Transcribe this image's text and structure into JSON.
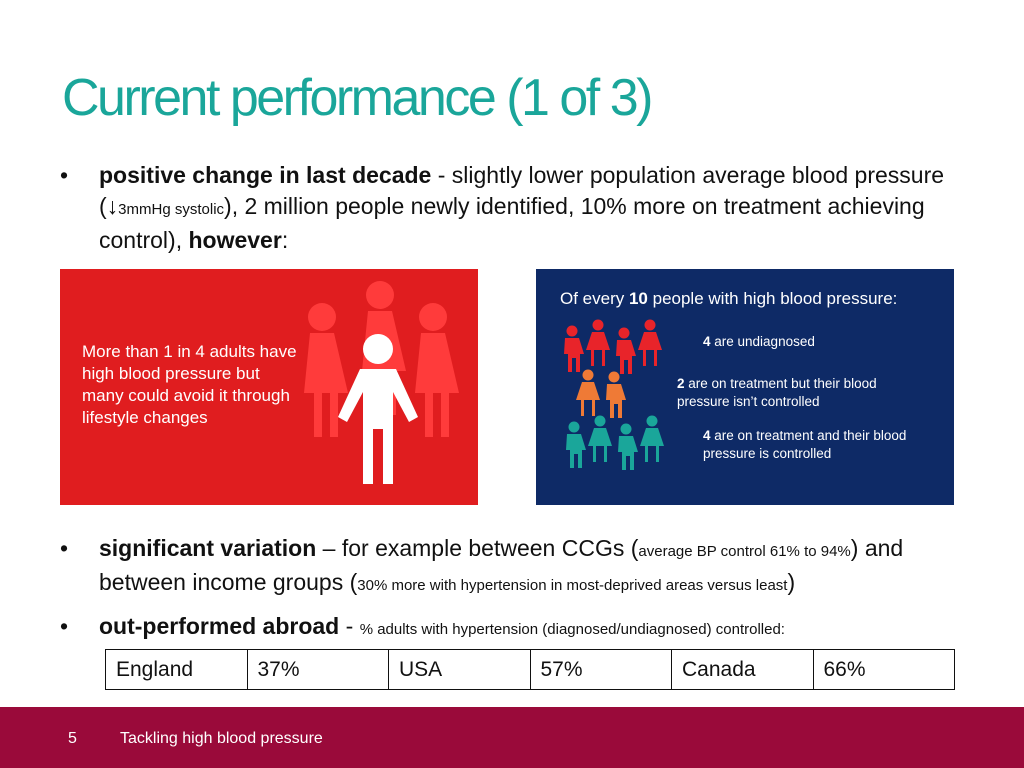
{
  "slide": {
    "title": "Current performance (1 of 3)"
  },
  "bullets": {
    "b1": {
      "bold": "positive change in last decade",
      "text1": " - slightly lower population average blood pressure (",
      "arrow": "↓",
      "small": "3mmHg systolic",
      "text2": "), 2 million people newly identified, 10% more on treatment achieving control), ",
      "bold2": "however",
      "end": ":"
    },
    "b2": {
      "bold": "significant variation",
      "text1": " – for example between CCGs (",
      "small1": "average BP control 61% to 94%",
      "text2": ") and between income groups (",
      "small2": "30% more with hypertension in most-deprived areas versus least",
      "text3": ")"
    },
    "b3": {
      "bold": "out-performed abroad",
      "text1": " - ",
      "small": "% adults with hypertension (diagnosed/undiagnosed) controlled:"
    },
    "bullet_char": "•"
  },
  "red_panel": {
    "text": "More than 1 in 4 adults have high blood pressure but many could avoid it through lifestyle changes",
    "colors": {
      "background": "#e01d1f",
      "figure": "#ff3b3b",
      "highlight": "#ffffff"
    }
  },
  "blue_panel": {
    "head_pre": "Of every ",
    "head_num": "10",
    "head_post": " people with high blood pressure:",
    "line1_num": "4",
    "line1_text": " are undiagnosed",
    "line2_num": "2",
    "line2_text": " are on treatment but their blood pressure isn’t controlled",
    "line3_num": "4",
    "line3_text": " are on treatment and their blood pressure is controlled",
    "colors": {
      "background": "#0e2a66",
      "red": "#e8242a",
      "orange": "#ef7a36",
      "teal": "#1aa69a"
    }
  },
  "comparison_table": {
    "cells": [
      "England",
      "37%",
      "USA",
      "57%",
      "Canada",
      "66%"
    ]
  },
  "footer": {
    "page_number": "5",
    "title": "Tackling high blood pressure"
  },
  "colors": {
    "title": "#1aa69a",
    "footer": "#9a0a3a"
  }
}
